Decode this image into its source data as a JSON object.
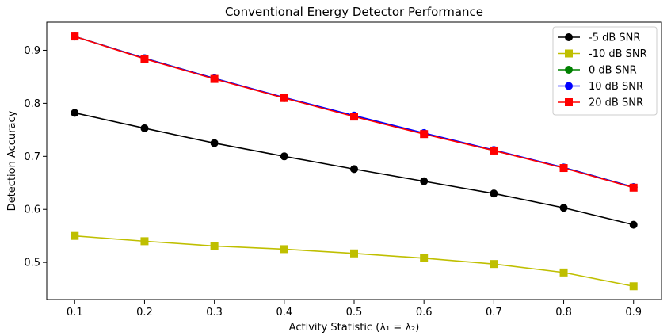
{
  "chart_data": {
    "type": "line",
    "title": "Conventional Energy Detector Performance",
    "xlabel": "Activity Statistic (λ₁ = λ₂)",
    "ylabel": "Detection Accuracy",
    "x": [
      0.1,
      0.2,
      0.3,
      0.4,
      0.5,
      0.6,
      0.7,
      0.8,
      0.9
    ],
    "xlim": [
      0.06,
      0.94
    ],
    "ylim": [
      0.43,
      0.953
    ],
    "xticks": [
      "0.1",
      "0.2",
      "0.3",
      "0.4",
      "0.5",
      "0.6",
      "0.7",
      "0.8",
      "0.9"
    ],
    "yticks": [
      "0.5",
      "0.6",
      "0.7",
      "0.8",
      "0.9"
    ],
    "grid": false,
    "legend_position": "top-right",
    "series": [
      {
        "name": "-5 dB SNR",
        "color": "#000000",
        "marker": "circle",
        "values": [
          0.782,
          0.753,
          0.725,
          0.7,
          0.676,
          0.653,
          0.63,
          0.603,
          0.571
        ]
      },
      {
        "name": "-10 dB SNR",
        "color": "#bfbf00",
        "marker": "square",
        "values": [
          0.55,
          0.54,
          0.531,
          0.525,
          0.517,
          0.508,
          0.497,
          0.481,
          0.455
        ]
      },
      {
        "name": "0 dB SNR",
        "color": "#008000",
        "marker": "circle",
        "values": [
          0.926,
          0.885,
          0.847,
          0.81,
          0.776,
          0.743,
          0.711,
          0.679,
          0.642
        ]
      },
      {
        "name": "10 dB SNR",
        "color": "#0000ff",
        "marker": "circle",
        "values": [
          0.926,
          0.885,
          0.847,
          0.811,
          0.777,
          0.744,
          0.712,
          0.679,
          0.642
        ]
      },
      {
        "name": "20 dB SNR",
        "color": "#ff0000",
        "marker": "square",
        "values": [
          0.926,
          0.884,
          0.846,
          0.81,
          0.775,
          0.742,
          0.711,
          0.678,
          0.641
        ]
      }
    ]
  }
}
